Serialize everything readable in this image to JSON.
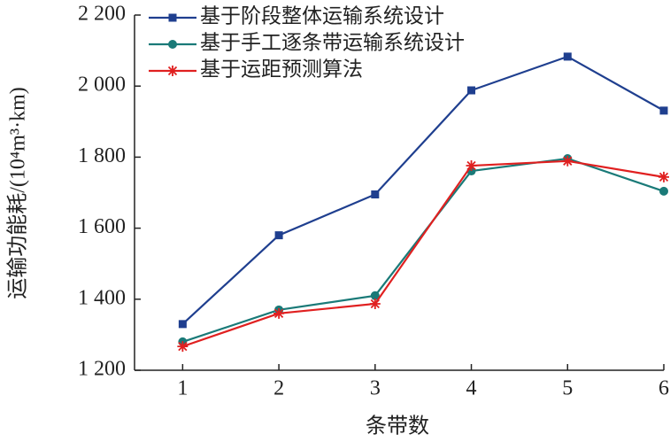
{
  "chart_data": {
    "type": "line",
    "x_label": "条带数",
    "y_label": "运输功能耗/(10⁴m³·km)",
    "x": [
      1,
      2,
      3,
      4,
      5,
      6
    ],
    "xlim": [
      0.5,
      6
    ],
    "xticks": [
      1,
      2,
      3,
      4,
      5,
      6
    ],
    "ylim": [
      1200,
      2200
    ],
    "yticks": [
      {
        "value": 1200,
        "label": "1 200"
      },
      {
        "value": 1400,
        "label": "1 400"
      },
      {
        "value": 1600,
        "label": "1 600"
      },
      {
        "value": 1800,
        "label": "1 800"
      },
      {
        "value": 2000,
        "label": "2 000"
      },
      {
        "value": 2200,
        "label": "2 200"
      }
    ],
    "legend": "upper left",
    "series": [
      {
        "name": "基于阶段整体运输系统设计",
        "color": "#1f3f8f",
        "marker": "square",
        "values": [
          1330,
          1580,
          1695,
          1988,
          2083,
          1931
        ]
      },
      {
        "name": "基于手工逐条带运输系统设计",
        "color": "#1a7a78",
        "marker": "circle",
        "values": [
          1280,
          1370,
          1410,
          1761,
          1796,
          1704
        ]
      },
      {
        "name": "基于运距预测算法",
        "color": "#e02020",
        "marker": "star",
        "values": [
          1267,
          1360,
          1387,
          1776,
          1789,
          1744
        ]
      }
    ]
  }
}
